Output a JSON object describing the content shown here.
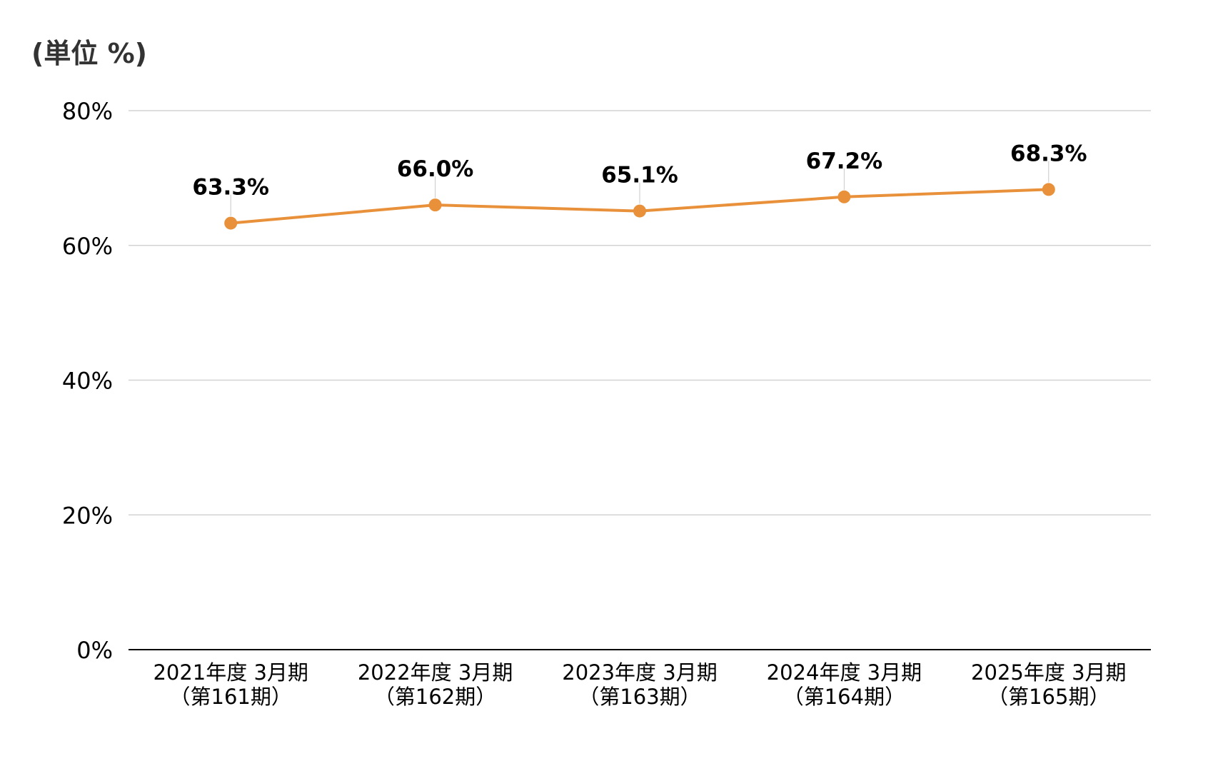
{
  "unit_label": "(単位 %)",
  "colors": {
    "line": "#E8913A",
    "marker": "#E8913A",
    "grid": "#D3D3D3",
    "baseline": "#000000",
    "text": "#000000",
    "leader": "#C8C8C8"
  },
  "chart_data": {
    "type": "line",
    "title": "",
    "xlabel": "",
    "ylabel": "",
    "ylim": [
      0,
      80
    ],
    "yticks": [
      0,
      20,
      40,
      60,
      80
    ],
    "ytick_labels": [
      "0%",
      "20%",
      "40%",
      "60%",
      "80%"
    ],
    "grid": true,
    "categories": [
      [
        "2021年度 3月期",
        "（第161期）"
      ],
      [
        "2022年度 3月期",
        "（第162期）"
      ],
      [
        "2023年度 3月期",
        "（第163期）"
      ],
      [
        "2024年度 3月期",
        "（第164期）"
      ],
      [
        "2025年度 3月期",
        "（第165期）"
      ]
    ],
    "series": [
      {
        "values": [
          63.3,
          66.0,
          65.1,
          67.2,
          68.3
        ],
        "data_labels": [
          "63.3%",
          "66.0%",
          "65.1%",
          "67.2%",
          "68.3%"
        ]
      }
    ]
  }
}
